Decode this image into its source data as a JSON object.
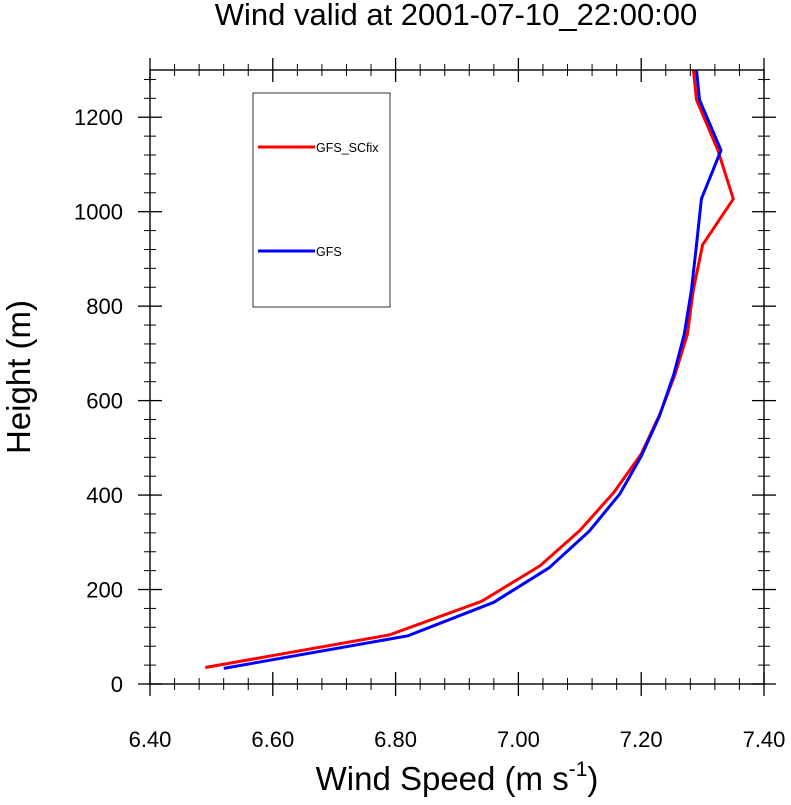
{
  "chart_data": {
    "type": "line",
    "title": "Wind valid at 2001-07-10_22:00:00",
    "xlabel_main": "Wind Speed (m s",
    "xlabel_sup": "-1",
    "xlabel_close": ")",
    "ylabel": "Height (m)",
    "xlim": [
      6.4,
      7.4
    ],
    "ylim": [
      0,
      1300
    ],
    "xticks": [
      6.4,
      6.6,
      6.8,
      7.0,
      7.2,
      7.4
    ],
    "xtick_labels": [
      "6.40",
      "6.60",
      "6.80",
      "7.00",
      "7.20",
      "7.40"
    ],
    "yticks": [
      0,
      200,
      400,
      600,
      800,
      1000,
      1200
    ],
    "ytick_labels": [
      "0",
      "200",
      "400",
      "600",
      "800",
      "1000",
      "1200"
    ],
    "legend_position": "top-left",
    "series": [
      {
        "name": "GFS_SCfix",
        "color": "#ff0000",
        "points": [
          [
            6.49,
            35
          ],
          [
            6.79,
            104
          ],
          [
            6.94,
            175
          ],
          [
            7.035,
            250
          ],
          [
            7.1,
            325
          ],
          [
            7.155,
            405
          ],
          [
            7.2,
            487
          ],
          [
            7.23,
            570
          ],
          [
            7.255,
            655
          ],
          [
            7.275,
            740
          ],
          [
            7.285,
            835
          ],
          [
            7.3,
            930
          ],
          [
            7.35,
            1027
          ],
          [
            7.325,
            1130
          ],
          [
            7.29,
            1237
          ],
          [
            7.285,
            1300
          ]
        ]
      },
      {
        "name": "GFS",
        "color": "#0000ff",
        "points": [
          [
            6.52,
            33
          ],
          [
            6.82,
            102
          ],
          [
            6.96,
            173
          ],
          [
            7.05,
            246
          ],
          [
            7.115,
            323
          ],
          [
            7.165,
            402
          ],
          [
            7.2,
            482
          ],
          [
            7.23,
            568
          ],
          [
            7.253,
            655
          ],
          [
            7.27,
            740
          ],
          [
            7.282,
            835
          ],
          [
            7.29,
            930
          ],
          [
            7.298,
            1027
          ],
          [
            7.33,
            1130
          ],
          [
            7.295,
            1237
          ],
          [
            7.29,
            1300
          ]
        ]
      }
    ]
  }
}
